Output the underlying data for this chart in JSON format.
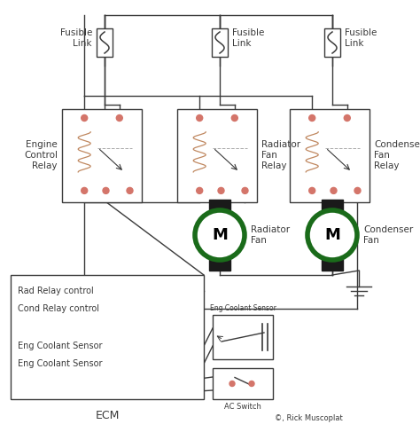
{
  "bg_color": "#ffffff",
  "line_color": "#3a3a3a",
  "dot_color": "#d4756a",
  "coil_color": "#c08860",
  "motor_ring_color": "#1a6b1a",
  "motor_body_color": "#1a1a1a",
  "lw": 1.0,
  "labels": {
    "fusible1": "Fusible\nLink",
    "fusible2": "Fusible\nLink",
    "fusible3": "Fusible\nLink",
    "relay1": "Engine\nControl\nRelay",
    "relay2": "Radiator\nFan\nRelay",
    "relay3": "Condenser\nFan\nRelay",
    "motor2": "Radiator\nFan",
    "motor3": "Condenser\nFan",
    "ecm": "ECM",
    "rad_relay": "Rad Relay control",
    "cond_relay": "Cond Relay control",
    "eng_sensor1": "Eng Coolant Sensor",
    "eng_sensor2": "Eng Coolant Sensor",
    "eng_sensor_label": "Eng Coolant Sensor",
    "ac_switch": "AC Switch",
    "copyright": "©, Rick Muscoplat"
  }
}
